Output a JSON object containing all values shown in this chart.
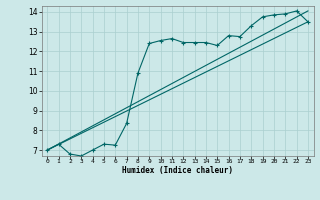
{
  "xlabel": "Humidex (Indice chaleur)",
  "ylabel": "",
  "bg_color": "#cce8e8",
  "grid_color": "#aacfcf",
  "line_color": "#006666",
  "xlim": [
    -0.5,
    23.5
  ],
  "ylim": [
    6.7,
    14.3
  ],
  "xticks": [
    0,
    1,
    2,
    3,
    4,
    5,
    6,
    7,
    8,
    9,
    10,
    11,
    12,
    13,
    14,
    15,
    16,
    17,
    18,
    19,
    20,
    21,
    22,
    23
  ],
  "yticks": [
    7,
    8,
    9,
    10,
    11,
    12,
    13,
    14
  ],
  "series1_x": [
    0,
    1,
    2,
    3,
    4,
    5,
    6,
    7,
    8,
    9,
    10,
    11,
    12,
    13,
    14,
    15,
    16,
    17,
    18,
    19,
    20,
    21,
    22,
    23
  ],
  "series1_y": [
    7.0,
    7.3,
    6.8,
    6.7,
    7.0,
    7.3,
    7.25,
    8.35,
    10.9,
    12.4,
    12.55,
    12.65,
    12.45,
    12.45,
    12.45,
    12.3,
    12.8,
    12.75,
    13.3,
    13.75,
    13.85,
    13.9,
    14.05,
    13.5
  ],
  "series2_x": [
    0,
    23
  ],
  "series2_y": [
    7.0,
    13.5
  ],
  "series3_x": [
    0,
    23
  ],
  "series3_y": [
    7.0,
    14.05
  ]
}
